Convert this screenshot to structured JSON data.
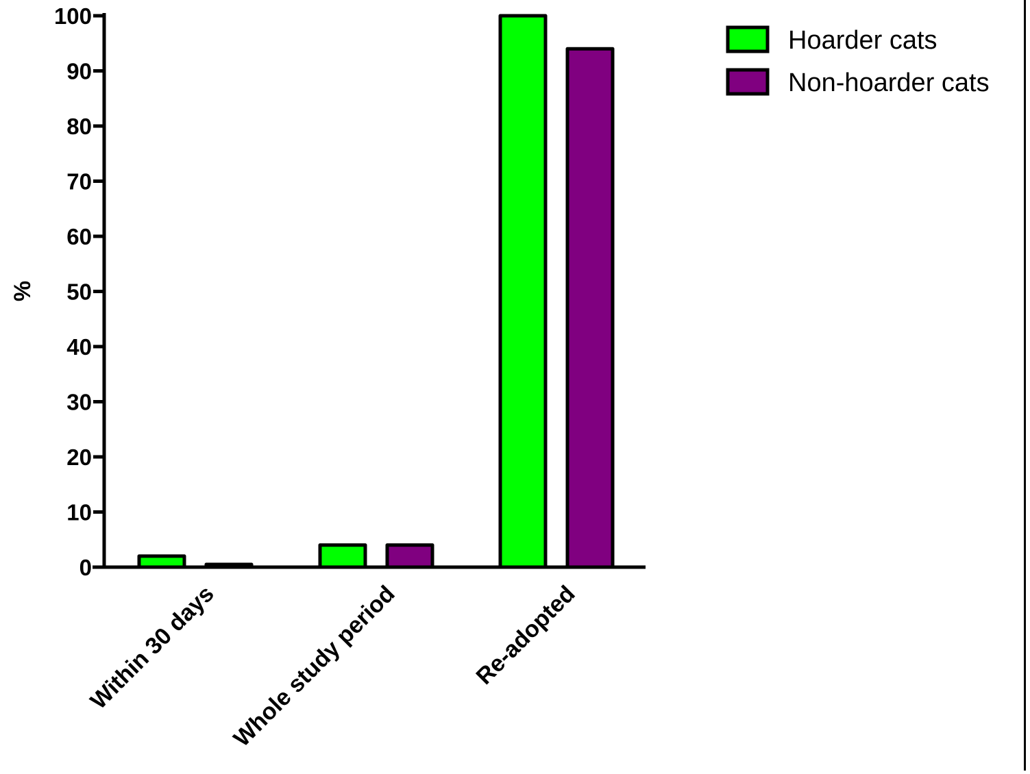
{
  "chart_data": {
    "type": "bar",
    "title": "",
    "xlabel": "",
    "ylabel": "%",
    "ylim": [
      0,
      100
    ],
    "yticks": [
      "0",
      "10",
      "20",
      "30",
      "40",
      "50",
      "60",
      "70",
      "80",
      "90",
      "100"
    ],
    "categories": [
      "Within 30 days",
      "Whole study period",
      "Re-adopted"
    ],
    "series": [
      {
        "name": "Hoarder cats",
        "color": "#00ff00",
        "values": [
          2,
          4,
          100
        ]
      },
      {
        "name": "Non-hoarder cats",
        "color": "#800080",
        "values": [
          0.5,
          4,
          94
        ]
      }
    ],
    "legend": {
      "position": "top-right"
    },
    "grid": false
  }
}
